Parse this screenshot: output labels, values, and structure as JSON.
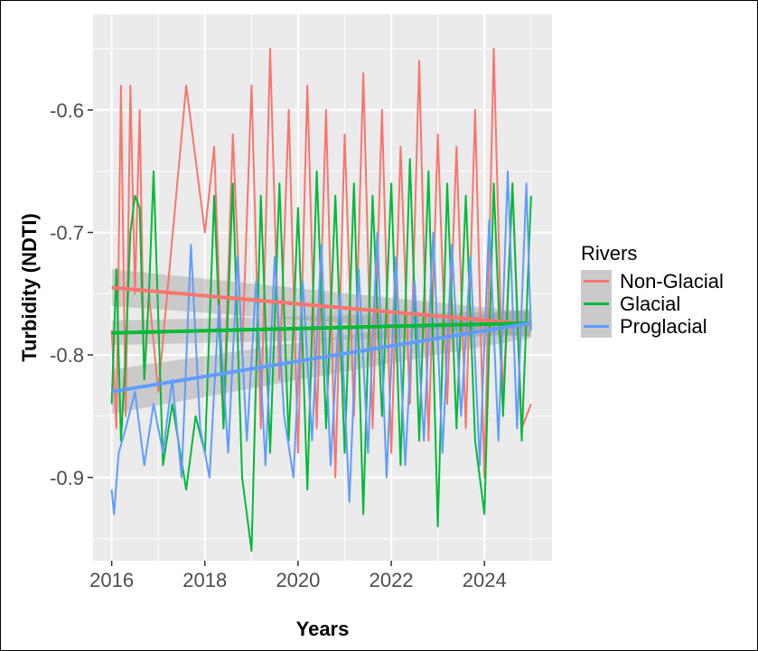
{
  "chart_data": {
    "type": "line",
    "xlabel": "Years",
    "ylabel": "Turbidity (NDTI)",
    "xlim": [
      2015.6,
      2025.45
    ],
    "ylim": [
      -0.968,
      -0.522
    ],
    "x_ticks": [
      2016,
      2018,
      2020,
      2022,
      2024
    ],
    "x_tick_labels": [
      "2016",
      "2018",
      "2020",
      "2022",
      "2024"
    ],
    "x_minor_ticks": [
      2017,
      2019,
      2021,
      2023,
      2025
    ],
    "y_ticks": [
      -0.9,
      -0.8,
      -0.7,
      -0.6
    ],
    "y_tick_labels": [
      "-0.9",
      "-0.8",
      "-0.7",
      "-0.6"
    ],
    "y_minor_ticks": [
      -0.95,
      -0.85,
      -0.75,
      -0.65,
      -0.55
    ],
    "grid": true,
    "legend": {
      "title": "Rivers",
      "position": "right",
      "entries": [
        "Non-Glacial",
        "Glacial",
        "Proglacial"
      ]
    },
    "series": [
      {
        "name": "Non-Glacial",
        "color": "#F8766D",
        "trend": {
          "x": [
            2016,
            2025
          ],
          "y": [
            -0.745,
            -0.775
          ],
          "se_lo": [
            -0.76,
            -0.785
          ],
          "se_hi": [
            -0.73,
            -0.765
          ]
        },
        "x": [
          2016.0,
          2016.1,
          2016.2,
          2016.3,
          2016.4,
          2016.5,
          2016.6,
          2016.7,
          2016.8,
          2017.0,
          2017.6,
          2018.0,
          2018.2,
          2018.4,
          2018.6,
          2018.8,
          2019.0,
          2019.2,
          2019.4,
          2019.6,
          2019.8,
          2020.0,
          2020.2,
          2020.4,
          2020.6,
          2020.8,
          2021.0,
          2021.2,
          2021.4,
          2021.6,
          2021.8,
          2022.0,
          2022.2,
          2022.4,
          2022.6,
          2022.8,
          2023.0,
          2023.2,
          2023.4,
          2023.6,
          2023.8,
          2024.0,
          2024.2,
          2024.4,
          2024.6,
          2024.8,
          2025.0
        ],
        "y": [
          -0.78,
          -0.86,
          -0.58,
          -0.85,
          -0.58,
          -0.75,
          -0.6,
          -0.82,
          -0.75,
          -0.83,
          -0.58,
          -0.7,
          -0.63,
          -0.85,
          -0.62,
          -0.8,
          -0.58,
          -0.86,
          -0.55,
          -0.82,
          -0.6,
          -0.88,
          -0.58,
          -0.86,
          -0.6,
          -0.9,
          -0.62,
          -0.85,
          -0.57,
          -0.86,
          -0.6,
          -0.88,
          -0.63,
          -0.84,
          -0.56,
          -0.87,
          -0.62,
          -0.84,
          -0.63,
          -0.86,
          -0.6,
          -0.9,
          -0.55,
          -0.84,
          -0.66,
          -0.86,
          -0.84
        ]
      },
      {
        "name": "Glacial",
        "color": "#00BA38",
        "trend": {
          "x": [
            2016,
            2025
          ],
          "y": [
            -0.782,
            -0.774
          ],
          "se_lo": [
            -0.792,
            -0.784
          ],
          "se_hi": [
            -0.772,
            -0.764
          ]
        },
        "x": [
          2016.0,
          2016.1,
          2016.2,
          2016.3,
          2016.4,
          2016.5,
          2016.6,
          2016.7,
          2016.8,
          2016.9,
          2017.1,
          2017.3,
          2017.6,
          2017.8,
          2018.0,
          2018.2,
          2018.4,
          2018.6,
          2018.8,
          2019.0,
          2019.2,
          2019.4,
          2019.6,
          2019.8,
          2020.0,
          2020.2,
          2020.4,
          2020.6,
          2020.8,
          2021.0,
          2021.2,
          2021.4,
          2021.6,
          2021.8,
          2022.0,
          2022.2,
          2022.4,
          2022.6,
          2022.8,
          2023.0,
          2023.2,
          2023.4,
          2023.6,
          2023.8,
          2024.0,
          2024.2,
          2024.4,
          2024.6,
          2024.8,
          2025.0
        ],
        "y": [
          -0.84,
          -0.73,
          -0.87,
          -0.8,
          -0.7,
          -0.67,
          -0.68,
          -0.82,
          -0.75,
          -0.65,
          -0.89,
          -0.84,
          -0.91,
          -0.85,
          -0.88,
          -0.67,
          -0.86,
          -0.66,
          -0.9,
          -0.96,
          -0.67,
          -0.88,
          -0.66,
          -0.87,
          -0.68,
          -0.91,
          -0.65,
          -0.86,
          -0.67,
          -0.88,
          -0.66,
          -0.93,
          -0.67,
          -0.85,
          -0.66,
          -0.89,
          -0.64,
          -0.87,
          -0.65,
          -0.94,
          -0.66,
          -0.86,
          -0.67,
          -0.87,
          -0.93,
          -0.66,
          -0.85,
          -0.66,
          -0.87,
          -0.67
        ]
      },
      {
        "name": "Proglacial",
        "color": "#619CFF",
        "trend": {
          "x": [
            2016,
            2025
          ],
          "y": [
            -0.83,
            -0.774
          ],
          "se_lo": [
            -0.848,
            -0.786
          ],
          "se_hi": [
            -0.812,
            -0.762
          ]
        },
        "x": [
          2016.0,
          2016.05,
          2016.15,
          2016.3,
          2016.5,
          2016.7,
          2016.9,
          2017.1,
          2017.3,
          2017.5,
          2017.7,
          2017.9,
          2018.1,
          2018.3,
          2018.5,
          2018.7,
          2018.9,
          2019.1,
          2019.3,
          2019.5,
          2019.7,
          2019.9,
          2020.1,
          2020.3,
          2020.5,
          2020.7,
          2020.9,
          2021.1,
          2021.3,
          2021.5,
          2021.7,
          2021.9,
          2022.1,
          2022.3,
          2022.5,
          2022.7,
          2022.9,
          2023.1,
          2023.3,
          2023.5,
          2023.7,
          2023.9,
          2024.1,
          2024.3,
          2024.5,
          2024.7,
          2024.9,
          2025.0
        ],
        "y": [
          -0.91,
          -0.93,
          -0.88,
          -0.86,
          -0.83,
          -0.89,
          -0.84,
          -0.88,
          -0.82,
          -0.9,
          -0.71,
          -0.86,
          -0.9,
          -0.76,
          -0.88,
          -0.72,
          -0.87,
          -0.74,
          -0.89,
          -0.72,
          -0.85,
          -0.9,
          -0.74,
          -0.87,
          -0.71,
          -0.89,
          -0.75,
          -0.92,
          -0.73,
          -0.88,
          -0.7,
          -0.9,
          -0.72,
          -0.89,
          -0.74,
          -0.87,
          -0.7,
          -0.88,
          -0.71,
          -0.85,
          -0.72,
          -0.89,
          -0.69,
          -0.87,
          -0.65,
          -0.86,
          -0.66,
          -0.78
        ]
      }
    ]
  }
}
